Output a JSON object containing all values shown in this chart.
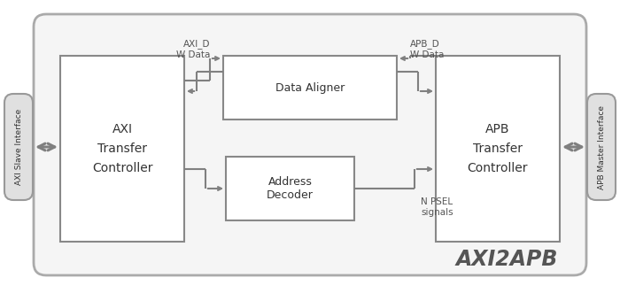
{
  "bg_color": "#ffffff",
  "outer_face": "#f5f5f5",
  "outer_edge": "#aaaaaa",
  "block_face": "#ffffff",
  "block_edge": "#888888",
  "tab_face": "#e0e0e0",
  "tab_edge": "#999999",
  "arrow_color": "#808080",
  "text_color": "#333333",
  "label_color": "#555555",
  "title_text": "AXI2APB",
  "axi_slave_label": "AXI Slave Interface",
  "apb_master_label": "APB Master Interface",
  "axi_ctrl_label": "AXI\nTransfer\nController",
  "apb_ctrl_label": "APB\nTransfer\nController",
  "data_aligner_label": "Data Aligner",
  "addr_decoder_label": "Address\nDecoder",
  "axi_d_label": "AXI_D\nW Data",
  "apb_d_label": "APB_D\nW Data",
  "n_psel_label": "N PSEL\nsignals",
  "figw": 7.0,
  "figh": 3.31,
  "dpi": 100
}
